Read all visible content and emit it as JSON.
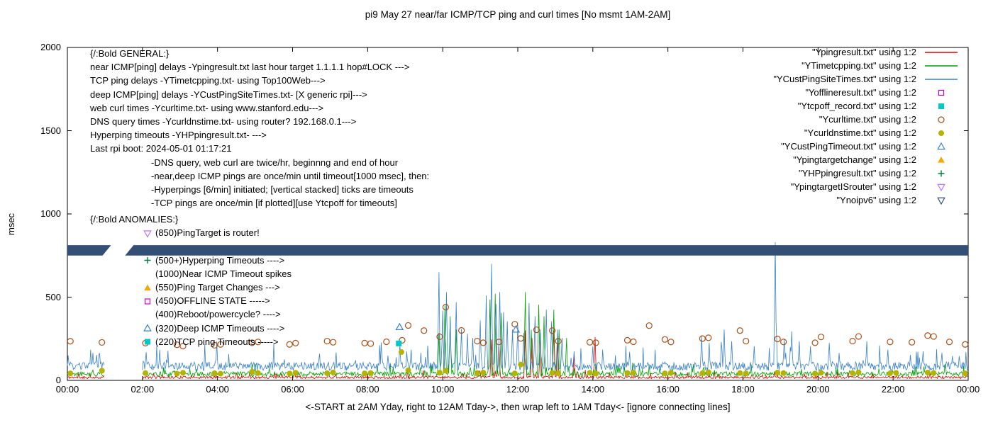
{
  "title": "pi9 May 27  near/far ICMP/TCP ping and curl times [No msmt 1AM-2AM]",
  "chart_data": {
    "type": "line+scatter",
    "title": "pi9 May 27  near/far ICMP/TCP ping and curl times [No msmt 1AM-2AM]",
    "xlabel": "<-START at 2AM Yday, right to 12AM Tday->, then wrap left to 1AM Tday<- [ignore connecting lines]",
    "ylabel": "msec",
    "xlim": [
      0,
      24
    ],
    "ylim": [
      0,
      2000
    ],
    "x_ticks": [
      {
        "value": 0,
        "label": "00:00"
      },
      {
        "value": 2,
        "label": "02:00"
      },
      {
        "value": 4,
        "label": "04:00"
      },
      {
        "value": 6,
        "label": "06:00"
      },
      {
        "value": 8,
        "label": "08:00"
      },
      {
        "value": 10,
        "label": "10:00"
      },
      {
        "value": 12,
        "label": "12:00"
      },
      {
        "value": 14,
        "label": "14:00"
      },
      {
        "value": 16,
        "label": "16:00"
      },
      {
        "value": 18,
        "label": "18:00"
      },
      {
        "value": 20,
        "label": "20:00"
      },
      {
        "value": 22,
        "label": "22:00"
      },
      {
        "value": 24,
        "label": "00:00"
      }
    ],
    "y_ticks": [
      {
        "value": 0,
        "label": "0"
      },
      {
        "value": 500,
        "label": "500"
      },
      {
        "value": 1000,
        "label": "1000"
      },
      {
        "value": 1500,
        "label": "1500"
      },
      {
        "value": 2000,
        "label": "2000"
      }
    ],
    "no_measurement_gap_hours": [
      1.0,
      2.0
    ],
    "series": [
      {
        "name": "Ypingresult.txt",
        "type": "line",
        "color": "#e00000",
        "baseline": 18,
        "noise": 8,
        "burst": 40,
        "seed": 11,
        "spikes": [
          [
            11.3,
            245
          ],
          [
            11.5,
            205
          ],
          [
            12.2,
            300
          ],
          [
            12.38,
            255
          ],
          [
            12.6,
            285
          ],
          [
            12.95,
            300
          ],
          [
            13.05,
            225
          ],
          [
            13.5,
            155
          ],
          [
            14.05,
            260
          ]
        ]
      },
      {
        "name": "YTimetcpping.txt",
        "type": "line",
        "color": "#00a000",
        "baseline": 38,
        "noise": 14,
        "burst": 60,
        "seed": 22,
        "spikes": [
          [
            9.9,
            285
          ],
          [
            10.05,
            450
          ],
          [
            10.2,
            385
          ],
          [
            10.35,
            305
          ],
          [
            11.25,
            485
          ],
          [
            11.4,
            520
          ],
          [
            11.55,
            405
          ],
          [
            12.2,
            530
          ],
          [
            12.35,
            305
          ],
          [
            12.55,
            455
          ],
          [
            12.7,
            385
          ],
          [
            12.95,
            425
          ],
          [
            13.1,
            305
          ],
          [
            13.3,
            255
          ]
        ]
      },
      {
        "name": "YCustPingSiteTimes.txt",
        "type": "line",
        "color": "#3b82c4",
        "baseline": 85,
        "noise": 26,
        "burst": 130,
        "seed": 33,
        "spikes": [
          [
            2.1,
            170
          ],
          [
            8.85,
            215
          ],
          [
            9.15,
            185
          ],
          [
            9.9,
            650
          ],
          [
            10.0,
            420
          ],
          [
            10.1,
            530
          ],
          [
            10.2,
            360
          ],
          [
            10.35,
            470
          ],
          [
            10.5,
            310
          ],
          [
            10.65,
            280
          ],
          [
            10.8,
            255
          ],
          [
            11.0,
            360
          ],
          [
            11.15,
            510
          ],
          [
            11.3,
            700
          ],
          [
            11.42,
            460
          ],
          [
            11.52,
            530
          ],
          [
            11.62,
            410
          ],
          [
            11.72,
            355
          ],
          [
            11.85,
            305
          ],
          [
            12.0,
            330
          ],
          [
            12.15,
            285
          ],
          [
            12.3,
            465
          ],
          [
            12.45,
            385
          ],
          [
            12.6,
            305
          ],
          [
            12.75,
            425
          ],
          [
            12.9,
            355
          ],
          [
            13.05,
            305
          ],
          [
            13.18,
            255
          ],
          [
            14.0,
            205
          ],
          [
            16.9,
            265
          ],
          [
            17.1,
            225
          ],
          [
            17.5,
            305
          ],
          [
            17.7,
            235
          ],
          [
            18.3,
            205
          ],
          [
            18.85,
            830
          ],
          [
            19.1,
            245
          ],
          [
            19.3,
            295
          ],
          [
            19.5,
            235
          ],
          [
            19.8,
            205
          ],
          [
            20.3,
            225
          ],
          [
            21.3,
            235
          ],
          [
            21.85,
            185
          ],
          [
            22.8,
            175
          ],
          [
            23.3,
            165
          ]
        ]
      },
      {
        "name": "Ycurltime.txt",
        "type": "scatter",
        "marker": "circle-open",
        "color": "#a85018",
        "points": [
          [
            0.08,
            235
          ],
          [
            0.92,
            228
          ],
          [
            2.08,
            224
          ],
          [
            2.92,
            214
          ],
          [
            3.08,
            206
          ],
          [
            3.92,
            211
          ],
          [
            4.08,
            216
          ],
          [
            4.92,
            226
          ],
          [
            5.08,
            231
          ],
          [
            5.92,
            216
          ],
          [
            6.08,
            224
          ],
          [
            6.92,
            236
          ],
          [
            7.08,
            229
          ],
          [
            7.92,
            224
          ],
          [
            8.08,
            221
          ],
          [
            8.5,
            232
          ],
          [
            8.92,
            241
          ],
          [
            9.08,
            330
          ],
          [
            9.5,
            299
          ],
          [
            9.92,
            262
          ],
          [
            10.08,
            440
          ],
          [
            10.5,
            300
          ],
          [
            10.92,
            236
          ],
          [
            11.08,
            226
          ],
          [
            11.5,
            231
          ],
          [
            11.92,
            338
          ],
          [
            12.08,
            252
          ],
          [
            12.5,
            304
          ],
          [
            12.92,
            299
          ],
          [
            13.08,
            236
          ],
          [
            13.92,
            229
          ],
          [
            14.08,
            226
          ],
          [
            14.92,
            241
          ],
          [
            15.08,
            232
          ],
          [
            15.5,
            329
          ],
          [
            15.92,
            246
          ],
          [
            16.08,
            231
          ],
          [
            16.92,
            251
          ],
          [
            17.08,
            256
          ],
          [
            17.92,
            299
          ],
          [
            18.08,
            236
          ],
          [
            18.92,
            249
          ],
          [
            19.08,
            231
          ],
          [
            19.92,
            226
          ],
          [
            20.08,
            261
          ],
          [
            20.92,
            236
          ],
          [
            21.08,
            264
          ],
          [
            21.92,
            231
          ],
          [
            22.5,
            229
          ],
          [
            22.92,
            269
          ],
          [
            23.08,
            264
          ],
          [
            23.5,
            231
          ],
          [
            23.92,
            216
          ]
        ]
      },
      {
        "name": "Ycurldnstime.txt",
        "type": "scatter",
        "marker": "circle-filled",
        "color": "#b4b400",
        "points": [
          [
            0.08,
            42
          ],
          [
            0.92,
            58
          ],
          [
            2.08,
            44
          ],
          [
            2.92,
            40
          ],
          [
            3.08,
            46
          ],
          [
            3.92,
            43
          ],
          [
            4.08,
            40
          ],
          [
            4.92,
            52
          ],
          [
            5.08,
            44
          ],
          [
            5.92,
            41
          ],
          [
            6.08,
            46
          ],
          [
            6.92,
            43
          ],
          [
            7.08,
            48
          ],
          [
            7.92,
            42
          ],
          [
            8.08,
            44
          ],
          [
            8.9,
            170
          ],
          [
            9.08,
            60
          ],
          [
            9.92,
            46
          ],
          [
            10.08,
            58
          ],
          [
            10.92,
            44
          ],
          [
            11.08,
            47
          ],
          [
            11.92,
            42
          ],
          [
            12.08,
            95
          ],
          [
            12.92,
            45
          ],
          [
            13.08,
            43
          ],
          [
            13.92,
            46
          ],
          [
            14.08,
            41
          ],
          [
            14.92,
            44
          ],
          [
            15.08,
            47
          ],
          [
            15.92,
            42
          ],
          [
            16.08,
            45
          ],
          [
            16.92,
            43
          ],
          [
            17.08,
            49
          ],
          [
            17.92,
            44
          ],
          [
            18.08,
            42
          ],
          [
            18.92,
            47
          ],
          [
            19.08,
            44
          ],
          [
            19.92,
            41
          ],
          [
            20.08,
            46
          ],
          [
            20.92,
            44
          ],
          [
            21.08,
            48
          ],
          [
            21.92,
            43
          ],
          [
            22.08,
            45
          ],
          [
            22.92,
            47
          ],
          [
            23.08,
            44
          ],
          [
            23.92,
            42
          ]
        ]
      },
      {
        "name": "YCustPingTimeout.txt",
        "type": "scatter",
        "marker": "triangle-up-open",
        "color": "#3b82c4",
        "points": [
          [
            8.85,
            320
          ],
          [
            11.95,
            305
          ]
        ]
      },
      {
        "name": "Ytcpoff_record.txt",
        "type": "scatter",
        "marker": "square-filled",
        "color": "#00c8c8",
        "points": [
          [
            8.83,
            222
          ]
        ]
      },
      {
        "name": "Yofflineresult.txt",
        "type": "scatter",
        "marker": "square-open",
        "color": "#c800c8",
        "points": []
      },
      {
        "name": "Ypingtargetchange",
        "type": "scatter",
        "marker": "triangle-up-filled",
        "color": "#f5a800",
        "points": []
      },
      {
        "name": "YHPpingresult.txt",
        "type": "scatter",
        "marker": "plus",
        "color": "#007f3f",
        "points": []
      },
      {
        "name": "YpingtargetISrouter",
        "type": "scatter",
        "marker": "triangle-down-open",
        "color": "#bf77f6",
        "points": []
      },
      {
        "name": "Ynoipv6",
        "type": "band",
        "color": "#334f76",
        "y_range": [
          750,
          812
        ],
        "gap_hours": [
          1.05,
          1.65
        ]
      }
    ],
    "legend": [
      {
        "label": "\"Ypingresult.txt\" using 1:2",
        "marker": "line",
        "color": "#e00000"
      },
      {
        "label": "\"YTimetcpping.txt\" using 1:2",
        "marker": "line",
        "color": "#00a000"
      },
      {
        "label": "\"YCustPingSiteTimes.txt\" using 1:2",
        "marker": "line",
        "color": "#3b82c4"
      },
      {
        "label": "\"Yofflineresult.txt\" using 1:2",
        "marker": "square-open",
        "color": "#c800c8"
      },
      {
        "label": "\"Ytcpoff_record.txt\" using 1:2",
        "marker": "square-filled",
        "color": "#00c8c8"
      },
      {
        "label": "\"Ycurltime.txt\" using 1:2",
        "marker": "circle-open",
        "color": "#a85018"
      },
      {
        "label": "\"Ycurldnstime.txt\" using 1:2",
        "marker": "circle-filled",
        "color": "#b4b400"
      },
      {
        "label": "\"YCustPingTimeout.txt\" using 1:2",
        "marker": "triangle-up-open",
        "color": "#3b82c4"
      },
      {
        "label": "\"Ypingtargetchange\" using 1:2",
        "marker": "triangle-up-filled",
        "color": "#f5a800"
      },
      {
        "label": "\"YHPpingresult.txt\" using 1:2",
        "marker": "plus",
        "color": "#007f3f"
      },
      {
        "label": "\"YpingtargetISrouter\" using 1:2",
        "marker": "triangle-down-open",
        "color": "#bf77f6"
      },
      {
        "label": "\"Ynoipv6\" using 1:2",
        "marker": "triangle-down-open",
        "color": "#334f76"
      }
    ]
  },
  "annotations": {
    "general": {
      "heading": "{/:Bold GENERAL:}",
      "lines": [
        "near ICMP[ping] delays -Ypingresult.txt last hour target 1.1.1.1 hop#LOCK --->",
        "TCP ping delays -YTimetcpping.txt- using Top100Web--->",
        "deep ICMP[ping] delays -YCustPingSiteTimes.txt- [X generic rpi]--->",
        "web curl times -Ycurltime.txt- using www.stanford.edu--->",
        "DNS query times -Ycurldnstime.txt- using router? 192.168.0.1--->",
        "Hyperping timeouts -YHPpingresult.txt- --->",
        "Last rpi boot: 2024-05-01 01:17:21"
      ],
      "indented_lines": [
        "-DNS query, web curl are twice/hr, beginnng and end of hour",
        "-near,deep ICMP pings are once/min until timeout[1000 msec], then:",
        "-Hyperpings [6/min] initiated; [vertical stacked] ticks are timeouts",
        "-TCP pings are once/min [if plotted][use Ytcpoff for timeouts]"
      ]
    },
    "anomalies": {
      "heading": "{/:Bold ANOMALIES:}",
      "items": [
        {
          "row": 1,
          "marker": "triangle-down-open",
          "color": "#bf77f6",
          "text": "(850)PingTarget is router!"
        },
        {
          "row": 3,
          "marker": "plus",
          "color": "#007f3f",
          "text": "(500+)Hyperping Timeouts ---->"
        },
        {
          "row": 4,
          "marker": "",
          "color": "",
          "text": "(1000)Near ICMP Timeout spikes"
        },
        {
          "row": 5,
          "marker": "triangle-up-filled",
          "color": "#f5a800",
          "text": "(550)Ping Target Changes --->"
        },
        {
          "row": 6,
          "marker": "square-open",
          "color": "#c800c8",
          "text": "(450)OFFLINE STATE ----->"
        },
        {
          "row": 7,
          "marker": "",
          "color": "",
          "text": "(400)Reboot/powercycle? ---->"
        },
        {
          "row": 8,
          "marker": "triangle-up-open",
          "color": "#3b82c4",
          "text": "(320)Deep ICMP Timeouts ---->"
        },
        {
          "row": 9,
          "marker": "square-filled",
          "color": "#00c8c8",
          "text": "(220)TCP ping Timeouts ----->"
        }
      ]
    }
  }
}
